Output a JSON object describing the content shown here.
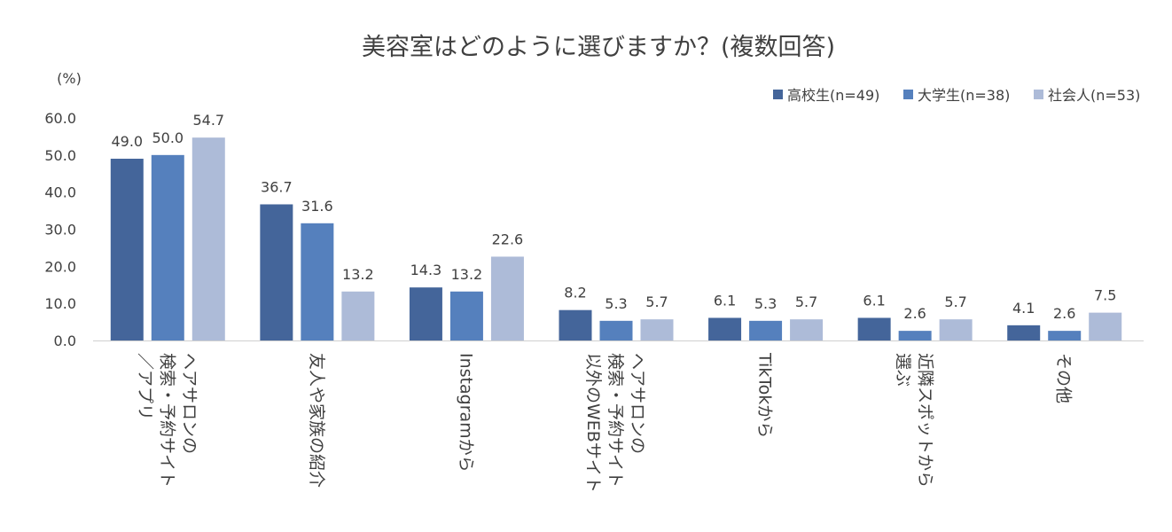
{
  "chart_data": {
    "type": "bar",
    "title": "美容室はどのように選びますか？(複数回答)",
    "unit_label": "(%)",
    "ylim": [
      0,
      60
    ],
    "yticks": [
      "0.0",
      "10.0",
      "20.0",
      "30.0",
      "40.0",
      "50.0",
      "60.0"
    ],
    "grid": false,
    "legend_position": "top-right",
    "categories": [
      [
        "ヘアサロンの",
        "検索・予約サイト",
        "／アプリ"
      ],
      [
        "友人や家族の紹介"
      ],
      [
        "Instagramから"
      ],
      [
        "ヘアサロンの",
        "検索・予約サイト",
        "以外のWEBサイト"
      ],
      [
        "TikTokから"
      ],
      [
        "近隣スポットから",
        "選ぶ"
      ],
      [
        "その他"
      ]
    ],
    "series": [
      {
        "name": "高校生(n=49)",
        "color": "#44659a",
        "values": [
          49.0,
          36.7,
          14.3,
          8.2,
          6.1,
          6.1,
          4.1
        ]
      },
      {
        "name": "大学生(n=38)",
        "color": "#5580bd",
        "values": [
          50.0,
          31.6,
          13.2,
          5.3,
          5.3,
          2.6,
          2.6
        ]
      },
      {
        "name": "社会人(n=53)",
        "color": "#adbbd8",
        "values": [
          54.7,
          13.2,
          22.6,
          5.7,
          5.7,
          5.7,
          7.5
        ]
      }
    ]
  }
}
